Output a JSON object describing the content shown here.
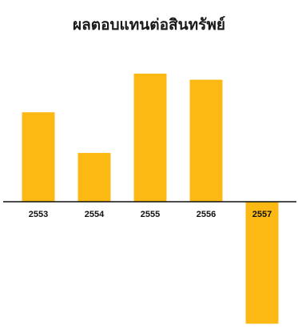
{
  "chart_data": {
    "type": "bar",
    "title": "ผลตอบแทนต่อสินทรัพย์",
    "categories": [
      "2553",
      "2554",
      "2555",
      "2556",
      "2557"
    ],
    "values": [
      4.4,
      2.4,
      6.3,
      6.0,
      -6.0
    ],
    "ylim": [
      -6.0,
      6.3
    ],
    "grid": false,
    "legend": "none",
    "colors": {
      "bar": "#FDB913",
      "axis": "#111111",
      "text": "#111111"
    }
  }
}
